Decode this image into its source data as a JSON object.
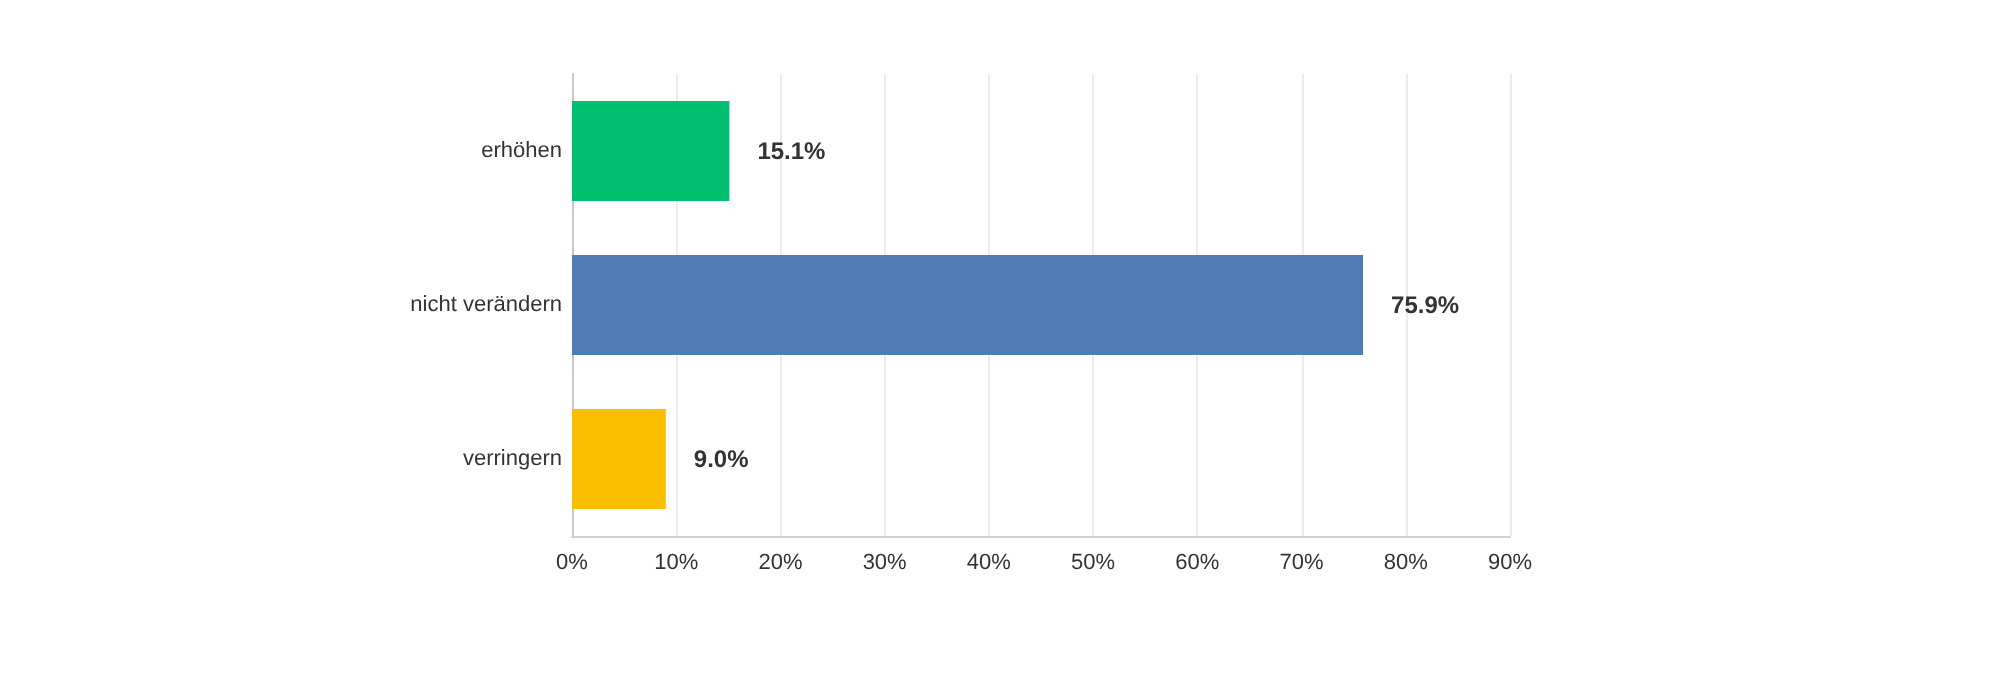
{
  "chart_data": {
    "type": "bar",
    "orientation": "horizontal",
    "categories": [
      "erhöhen",
      "nicht verändern",
      "verringern"
    ],
    "values": [
      15.1,
      75.9,
      9.0
    ],
    "colors": [
      "#00bf6f",
      "#507cb6",
      "#f9be00"
    ],
    "value_labels": [
      "15.1%",
      "75.9%",
      "9.0%"
    ],
    "xlim": [
      0,
      90
    ],
    "xticks": [
      {
        "value": 0,
        "label": "0%"
      },
      {
        "value": 10,
        "label": "10%"
      },
      {
        "value": 20,
        "label": "20%"
      },
      {
        "value": 30,
        "label": "30%"
      },
      {
        "value": 40,
        "label": "40%"
      },
      {
        "value": 50,
        "label": "50%"
      },
      {
        "value": 60,
        "label": "60%"
      },
      {
        "value": 70,
        "label": "70%"
      },
      {
        "value": 80,
        "label": "80%"
      },
      {
        "value": 90,
        "label": "90%"
      }
    ],
    "grid": "x"
  }
}
